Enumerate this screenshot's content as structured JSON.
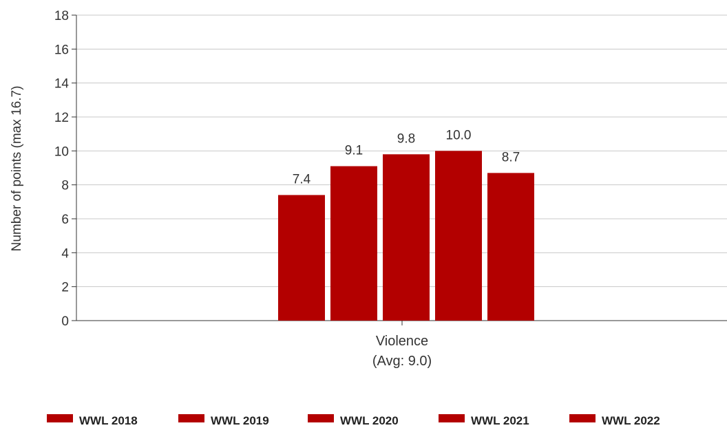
{
  "chart_data": {
    "type": "bar",
    "categories": [
      "Violence"
    ],
    "category_sublabels": [
      "(Avg: 9.0)"
    ],
    "series": [
      {
        "name": "WWL 2018",
        "values": [
          7.4
        ],
        "label": "7.4"
      },
      {
        "name": "WWL 2019",
        "values": [
          9.1
        ],
        "label": "9.1"
      },
      {
        "name": "WWL 2020",
        "values": [
          9.8
        ],
        "label": "9.8"
      },
      {
        "name": "WWL 2021",
        "values": [
          10.0
        ],
        "label": "10.0"
      },
      {
        "name": "WWL 2022",
        "values": [
          8.7
        ],
        "label": "8.7"
      }
    ],
    "ylabel": "Number of points (max 16.7)",
    "ylim": [
      0,
      18
    ],
    "yticks": [
      0,
      2,
      4,
      6,
      8,
      10,
      12,
      14,
      16,
      18
    ],
    "grid": true,
    "legend_position": "bottom",
    "bar_color": "#b30000"
  }
}
